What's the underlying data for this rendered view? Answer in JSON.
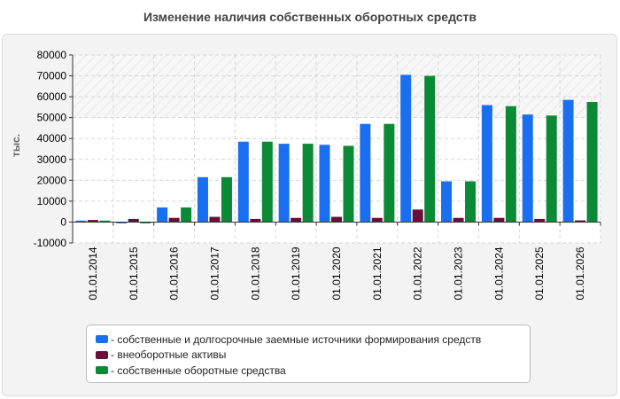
{
  "chart_data": {
    "type": "bar",
    "title": "Изменение наличия собственных оборотных средств",
    "ylabel": "тыс.",
    "xlabel": "",
    "ylim": [
      -10000,
      80000
    ],
    "yticks": [
      -10000,
      0,
      10000,
      20000,
      30000,
      40000,
      50000,
      60000,
      70000,
      80000
    ],
    "grid": true,
    "legend_position": "bottom",
    "categories": [
      "01.01.2014",
      "01.01.2015",
      "01.01.2016",
      "01.01.2017",
      "01.01.2018",
      "01.01.2019",
      "01.01.2020",
      "01.01.2021",
      "01.01.2022",
      "01.01.2023",
      "01.01.2024",
      "01.01.2025",
      "01.01.2026"
    ],
    "series": [
      {
        "name": "- собственные и долгосрочные заемные источники формирования средств",
        "color": "#1a6ff0",
        "values": [
          700,
          -600,
          7000,
          21500,
          38500,
          37500,
          37000,
          47000,
          70500,
          19500,
          56000,
          51500,
          58500
        ]
      },
      {
        "name": "- внеоборотные активы",
        "color": "#6b0d3a",
        "values": [
          1000,
          1500,
          2000,
          2500,
          1500,
          2000,
          2500,
          2000,
          6000,
          2000,
          2000,
          1500,
          800
        ]
      },
      {
        "name": "- собственные оборотные средства",
        "color": "#0a8a34",
        "values": [
          700,
          -600,
          7000,
          21500,
          38500,
          37500,
          36500,
          47000,
          70000,
          19500,
          55500,
          51000,
          57500
        ]
      }
    ]
  }
}
